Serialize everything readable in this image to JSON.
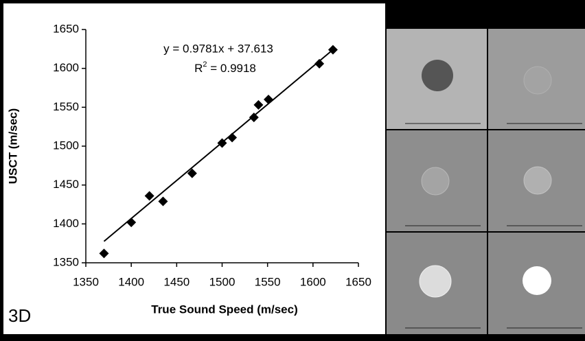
{
  "chart_data": {
    "type": "scatter",
    "x_label": "True Sound Speed (m/sec)",
    "y_label": "USCT (m/sec)",
    "panel_label": "3D",
    "x": [
      1370,
      1400,
      1420,
      1435,
      1467,
      1500,
      1511,
      1535,
      1540,
      1551,
      1607,
      1622
    ],
    "series": [
      {
        "color": "#000000",
        "values": [
          1362,
          1402,
          1436,
          1429,
          1465,
          1504,
          1511,
          1537,
          1553,
          1560,
          1606,
          1624
        ]
      }
    ],
    "trendline": {
      "slope": 0.9781,
      "intercept": 37.613,
      "label": "y = 0.9781x + 37.613",
      "r2_base": "R",
      "r2_sup": "2",
      "r2_rest": " = 0.9918"
    },
    "xlim": [
      1350,
      1650
    ],
    "xticks": [
      1350,
      1400,
      1450,
      1500,
      1550,
      1600,
      1650
    ],
    "ylim": [
      1350,
      1650
    ],
    "yticks": [
      1350,
      1400,
      1450,
      1500,
      1550,
      1600,
      1650
    ],
    "grid": false
  }
}
